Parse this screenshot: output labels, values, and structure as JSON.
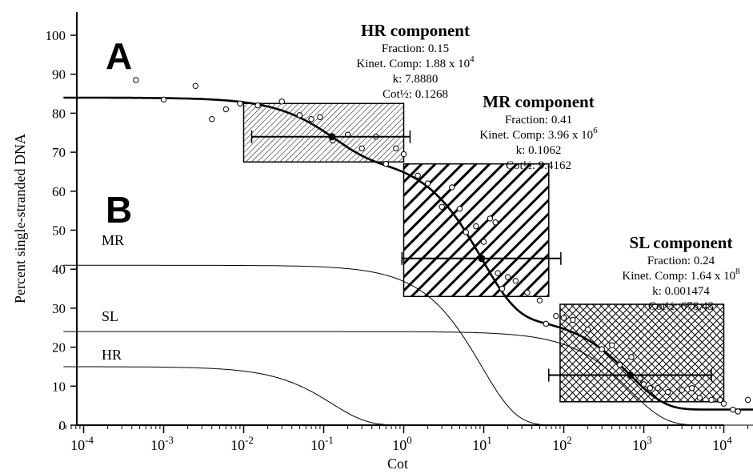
{
  "chart_data": {
    "type": "line",
    "title": "",
    "xlabel": "Cot",
    "ylabel": "Percent single-stranded DNA",
    "x_scale": "log",
    "xlim": [
      5e-05,
      200000
    ],
    "ylim": [
      0,
      100
    ],
    "y_ticks": [
      0,
      10,
      20,
      30,
      40,
      50,
      60,
      70,
      80,
      90,
      100
    ],
    "x_ticks": [
      {
        "value": 0.0001,
        "base": "10",
        "exp": "-4"
      },
      {
        "value": 0.001,
        "base": "10",
        "exp": "-3"
      },
      {
        "value": 0.01,
        "base": "10",
        "exp": "-2"
      },
      {
        "value": 0.1,
        "base": "10",
        "exp": "-1"
      },
      {
        "value": 1,
        "base": "10",
        "exp": "0"
      },
      {
        "value": 10,
        "base": "10",
        "exp": "1"
      },
      {
        "value": 100,
        "base": "10",
        "exp": "2"
      },
      {
        "value": 1000,
        "base": "10",
        "exp": "3"
      },
      {
        "value": 10000,
        "base": "10",
        "exp": "4"
      },
      {
        "value": 100000,
        "base": "10",
        "exp": "5"
      }
    ],
    "panel_labels": [
      "A",
      "B"
    ],
    "components": [
      {
        "key": "HR",
        "curve_label": "HR",
        "fraction": 0.15,
        "k": 7.888,
        "cot_half": 0.1268,
        "title": "HR component",
        "lines": [
          "Fraction: 0.15",
          "Kinet. Comp: 1.88 x 10",
          "k: 7.8880",
          "Cot½: 0.1268"
        ],
        "kc_exp": "4",
        "errorbar": [
          0.0126,
          1.2
        ]
      },
      {
        "key": "MR",
        "curve_label": "MR",
        "fraction": 0.41,
        "k": 0.1062,
        "cot_half": 9.4162,
        "title": "MR component",
        "lines": [
          "Fraction: 0.41",
          "Kinet. Comp: 3.96 x 10",
          "k: 0.1062",
          "Cot½: 9.4162"
        ],
        "kc_exp": "6",
        "errorbar": [
          0.95,
          92
        ]
      },
      {
        "key": "SL",
        "curve_label": "SL",
        "fraction": 0.24,
        "k": 0.001474,
        "cot_half": 678.43,
        "title": "SL component",
        "lines": [
          "Fraction: 0.24",
          "Kinet. Comp: 1.64 x 10",
          "k: 0.001474",
          "Cot½: 678.43"
        ],
        "kc_exp": "8",
        "errorbar": [
          65,
          7000
        ]
      }
    ],
    "baseline": 4.0,
    "hatched_boxes": [
      {
        "key": "HR",
        "x0": 0.01,
        "x1": 1.0,
        "y_low": 67.5,
        "y_high": 82.5,
        "pattern": "fine-diagonal"
      },
      {
        "key": "MR",
        "x0": 1.0,
        "x1": 65,
        "y_low": 33,
        "y_high": 67,
        "pattern": "wide-diagonal"
      },
      {
        "key": "SL",
        "x0": 90,
        "x1": 10000,
        "y_low": 6,
        "y_high": 31,
        "pattern": "crosshatch"
      }
    ],
    "points": [
      [
        0.00045,
        88.5
      ],
      [
        0.001,
        83.5
      ],
      [
        0.0025,
        87
      ],
      [
        0.004,
        78.5
      ],
      [
        0.006,
        81
      ],
      [
        0.009,
        82.5
      ],
      [
        0.015,
        82
      ],
      [
        0.03,
        83
      ],
      [
        0.05,
        79.5
      ],
      [
        0.07,
        78.5
      ],
      [
        0.09,
        79
      ],
      [
        0.13,
        73
      ],
      [
        0.2,
        74.5
      ],
      [
        0.3,
        71
      ],
      [
        0.45,
        74
      ],
      [
        0.6,
        67
      ],
      [
        0.8,
        71
      ],
      [
        1.0,
        69.5
      ],
      [
        1.5,
        64
      ],
      [
        2.0,
        62
      ],
      [
        3.0,
        56
      ],
      [
        4.0,
        61
      ],
      [
        5.0,
        55.5
      ],
      [
        6.0,
        49.5
      ],
      [
        8.0,
        51
      ],
      [
        10.0,
        47
      ],
      [
        12.0,
        53
      ],
      [
        14.0,
        52
      ],
      [
        15.0,
        39
      ],
      [
        17.0,
        35
      ],
      [
        20.0,
        38
      ],
      [
        25.0,
        37
      ],
      [
        35.0,
        34
      ],
      [
        50.0,
        32
      ],
      [
        60.0,
        26
      ],
      [
        80.0,
        28
      ],
      [
        100.0,
        27.5
      ],
      [
        130.0,
        27
      ],
      [
        200.0,
        24.5
      ],
      [
        300.0,
        19.5
      ],
      [
        400.0,
        20.5
      ],
      [
        500.0,
        15.5
      ],
      [
        700.0,
        17.5
      ],
      [
        900.0,
        12
      ],
      [
        1000.0,
        10.5
      ],
      [
        1200.0,
        9.5
      ],
      [
        1500.0,
        9.5
      ],
      [
        2000.0,
        8.5
      ],
      [
        3000.0,
        9
      ],
      [
        4000.0,
        9.5
      ],
      [
        5000.0,
        7
      ],
      [
        7000.0,
        6.5
      ],
      [
        9000.0,
        6.5
      ],
      [
        10000.0,
        5.5
      ],
      [
        13000.0,
        4
      ],
      [
        15000.0,
        3.5
      ],
      [
        20000.0,
        6.5
      ]
    ]
  }
}
